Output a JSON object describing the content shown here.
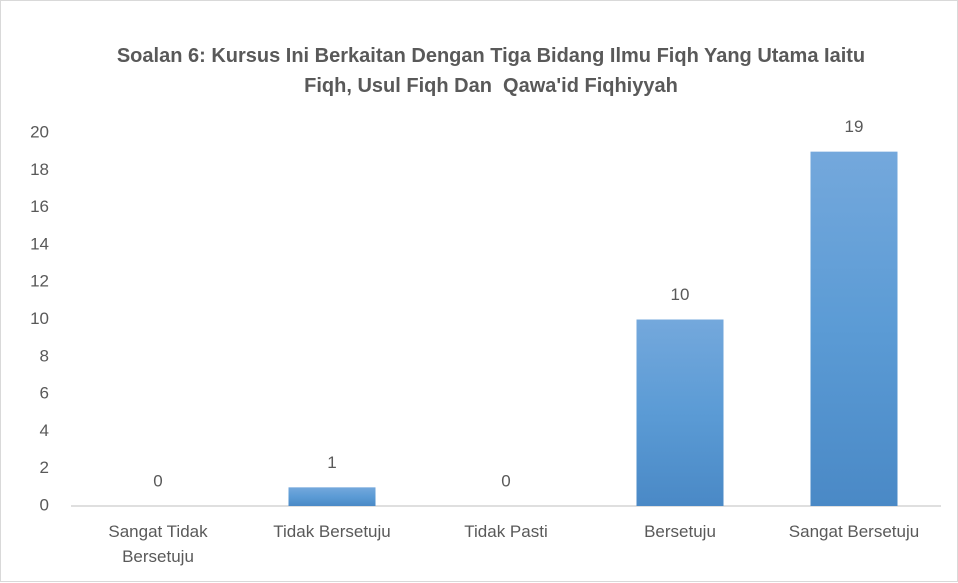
{
  "chart_data": {
    "type": "bar",
    "title": "Soalan 6: Kursus Ini Berkaitan Dengan Tiga Bidang Ilmu Fiqh Yang Utama Iaitu Fiqh, Usul Fiqh Dan  Qawa'id Fiqhiyyah",
    "categories": [
      "Sangat Tidak Bersetuju",
      "Tidak Bersetuju",
      "Tidak Pasti",
      "Bersetuju",
      "Sangat Bersetuju"
    ],
    "values": [
      0,
      1,
      0,
      10,
      19
    ],
    "color": "#5b9bd5",
    "ylim": [
      0,
      20
    ],
    "yticks": [
      0,
      2,
      4,
      6,
      8,
      10,
      12,
      14,
      16,
      18,
      20
    ],
    "grid": false
  }
}
